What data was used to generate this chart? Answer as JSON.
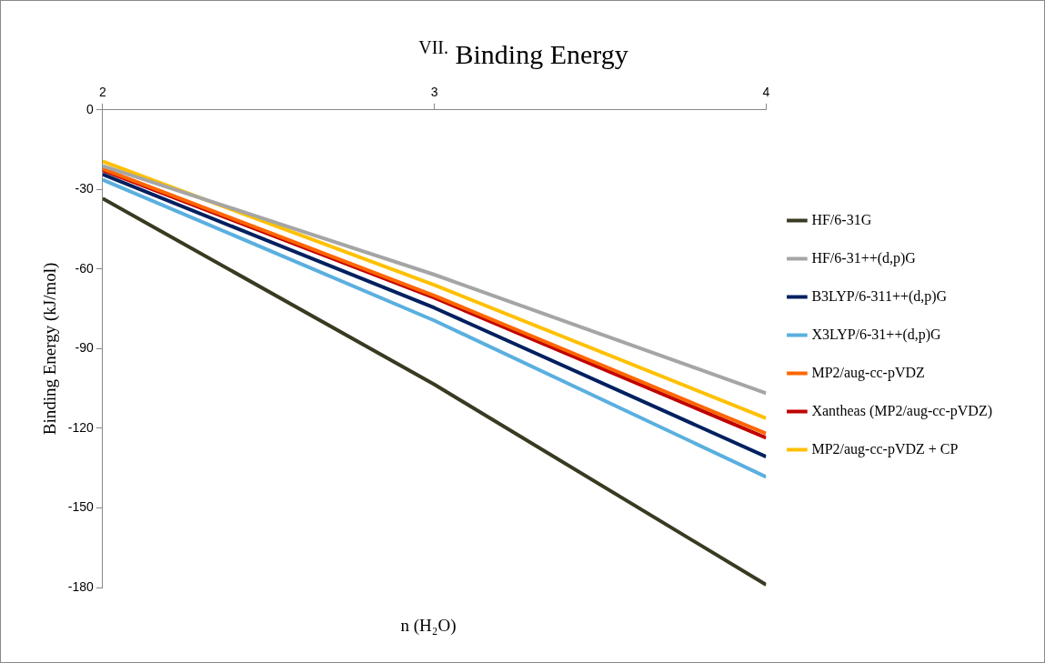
{
  "chart_data": {
    "type": "line",
    "title": "$^{VII.}$ Binding Energy",
    "xlabel": "n (H₂O)",
    "ylabel": "Binding Energy (kJ/mol)",
    "x": [
      2,
      3,
      4
    ],
    "xlim": [
      2,
      4
    ],
    "xticks": [
      2,
      3,
      4
    ],
    "ylim": [
      -180,
      0
    ],
    "yticks": [
      -180,
      -150,
      -120,
      -90,
      -60,
      -30,
      0
    ],
    "grid": false,
    "legend": "right",
    "marker": "none",
    "series": [
      {
        "name": "HF/6-31G",
        "color": "#3a3a22",
        "values": [
          -33.4,
          -103.5,
          -179
        ]
      },
      {
        "name": "HF/6-31++(d,p)G",
        "color": "#a5a5a5",
        "values": [
          -21.1,
          -62.1,
          -106.8
        ]
      },
      {
        "name": "B3LYP/6-311++(d,p)G",
        "color": "#002060",
        "values": [
          -24.3,
          -74.6,
          -130.7
        ]
      },
      {
        "name": "X3LYP/6-31++(d,p)G",
        "color": "#5aafdf",
        "values": [
          -26.3,
          -79.4,
          -138.3
        ]
      },
      {
        "name": "MP2/aug-cc-pVDZ",
        "color": "#ff6600",
        "values": [
          -22.2,
          -70,
          -122
        ]
      },
      {
        "name": "Xantheas (MP2/aug-cc-pVDZ)",
        "color": "#c00000",
        "values": [
          -22.7,
          -70.8,
          -123.6
        ]
      },
      {
        "name": "MP2/aug-cc-pVDZ + CP",
        "color": "#ffc000",
        "values": [
          -19.4,
          -66,
          -116.2
        ]
      }
    ]
  }
}
